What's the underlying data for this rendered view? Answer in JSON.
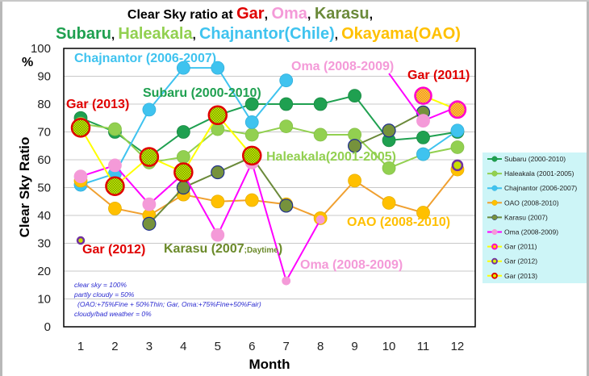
{
  "title": {
    "prefix": "Clear Sky ratio at ",
    "gar": "Gar",
    "sep1": ", ",
    "oma": "Oma",
    "sep2": ", ",
    "karasu": "Karasu",
    "sep3": ",",
    "subaru": "Subaru",
    "sep4": ", ",
    "haleakala": "Haleakala",
    "sep5": ", ",
    "chajnantor": "Chajnantor(Chile)",
    "sep6": ", ",
    "okayama": "Okayama(OAO)"
  },
  "chart_data": {
    "type": "line",
    "xlabel": "Month",
    "ylabel": "Clear Sky Ratio",
    "yunit": "%",
    "x": [
      1,
      2,
      3,
      4,
      5,
      6,
      7,
      8,
      9,
      10,
      11,
      12
    ],
    "ylim": [
      0,
      100
    ],
    "yticks": [
      0,
      10,
      20,
      30,
      40,
      50,
      60,
      70,
      80,
      90,
      100
    ],
    "grid": true,
    "legend": "right",
    "series": [
      {
        "name": "Subaru (2000-2010)",
        "line": "#1fa050",
        "fill": "#1fa050",
        "edge": "#1a8a44",
        "values": [
          75,
          70,
          61,
          70,
          76,
          80,
          80,
          80,
          83,
          67,
          68,
          70
        ]
      },
      {
        "name": "Haleakala (2001-2005)",
        "line": "#92d050",
        "fill": "#92d050",
        "edge": "#86c048",
        "values": [
          73,
          71,
          59,
          61,
          71,
          69,
          72,
          69,
          69,
          57,
          62,
          64.5
        ]
      },
      {
        "name": "Chajnantor (2006-2007)",
        "line": "#3fc3ef",
        "fill": "#3fc3ef",
        "edge": "#35b0dd",
        "values": [
          51,
          55,
          78,
          93,
          93,
          73.5,
          88.5,
          null,
          null,
          null,
          62,
          70.5
        ]
      },
      {
        "name": "OAO (2008-2010)",
        "line": "#f0a030",
        "fill": "#ffc000",
        "edge": "#e8b000",
        "values": [
          52.5,
          42.5,
          40,
          47.5,
          45,
          45.5,
          44,
          39,
          52.5,
          44.5,
          41,
          56.5
        ]
      },
      {
        "name": "Karasu (2007)",
        "line": "#6b8a3a",
        "fill": "#76923c",
        "edge": "#1f2f8f",
        "values": [
          null,
          null,
          37,
          50,
          55.5,
          61,
          43.5,
          null,
          65,
          70.5,
          77,
          null
        ]
      },
      {
        "name": "Oma (2008-2009)",
        "line": "#ff00ff",
        "fill": "#f49ad8",
        "edge": "#f49ad8",
        "values": [
          54,
          58,
          44,
          55,
          33,
          59,
          16.5,
          38.5,
          null,
          91,
          74,
          79
        ]
      },
      {
        "name": "Gar (2011)",
        "line": "#ffff00",
        "fill": "#ffc000",
        "edge": "#ff00cc",
        "values": [
          null,
          null,
          null,
          null,
          null,
          null,
          null,
          null,
          null,
          null,
          83,
          78
        ]
      },
      {
        "name": "Gar (2012)",
        "line": "#ffff00",
        "fill": "#c8e000",
        "edge": "#7030a0",
        "values": [
          31,
          null,
          null,
          null,
          null,
          null,
          null,
          null,
          null,
          null,
          null,
          58
        ]
      },
      {
        "name": "Gar (2013)",
        "line": "#ffff00",
        "fill": "#c8e000",
        "edge": "#e00000",
        "values": [
          71.5,
          50.5,
          61,
          55.5,
          76,
          61.5,
          null,
          null,
          null,
          null,
          null,
          null
        ]
      }
    ],
    "annotations": [
      {
        "text": "Chajnantor (2006-2007)",
        "color": "#3fc3ef"
      },
      {
        "text": "Subaru (2000-2010)",
        "color": "#1fa050"
      },
      {
        "text": "Gar (2013)",
        "color": "#e00000"
      },
      {
        "text": "Oma (2008-2009)",
        "color": "#f49ad8"
      },
      {
        "text": "Gar (2011)",
        "color": "#e00000"
      },
      {
        "text": "Haleakala(2001-2005)",
        "color": "#92d050"
      },
      {
        "text": "Gar (2012)",
        "color": "#e00000"
      },
      {
        "text": "Karasu (2007",
        "color": "#6b8a2a",
        "small": ";Daytime",
        "close": ")"
      },
      {
        "text": "OAO (2008-2010)",
        "color": "#ffc000"
      },
      {
        "text": "Oma (2008-2009)",
        "color": "#f49ad8"
      }
    ],
    "notes": [
      "clear sky = 100%",
      "partly cloudy = 50%",
      "(OAO:+75%Fine + 50%Thin; Gar, Oma:+75%Fine+50%Fair)",
      "cloudy/bad weather = 0%"
    ]
  }
}
